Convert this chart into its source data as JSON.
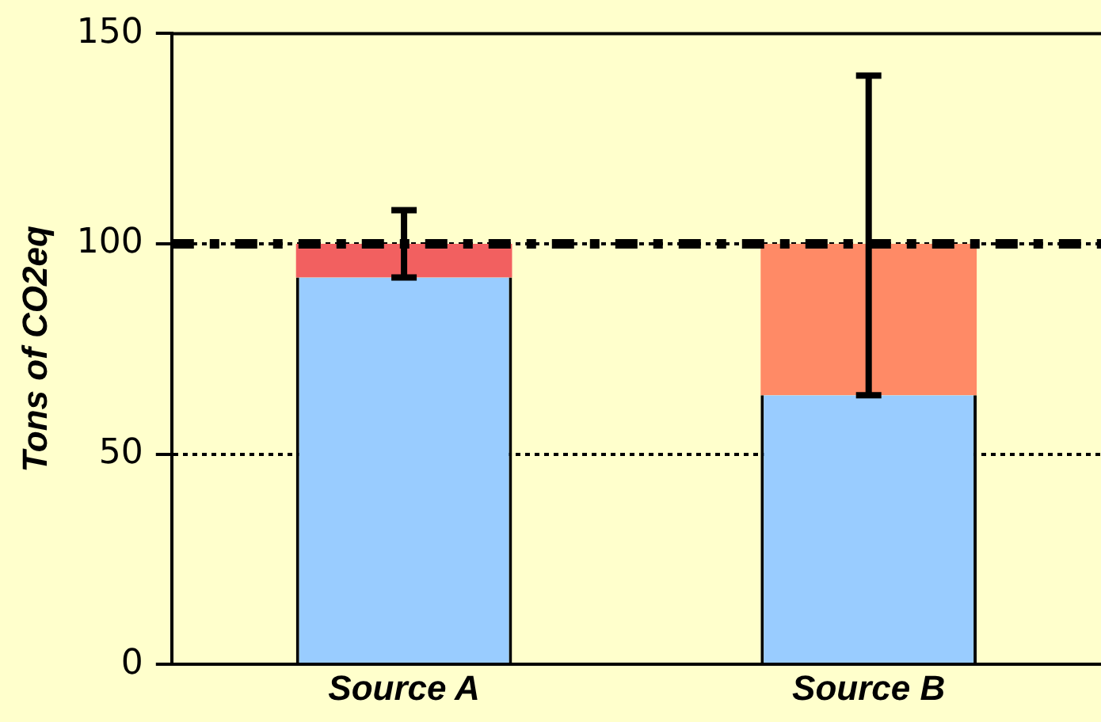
{
  "chart_data": {
    "type": "bar",
    "ylabel": "Tons of CO2eq",
    "categories": [
      "Source A",
      "Source B"
    ],
    "stacked": true,
    "series": [
      {
        "color": "#99ccff",
        "values": [
          92,
          64
        ]
      },
      {
        "colors": [
          "#f26060",
          "#ff8a66"
        ],
        "values": [
          8,
          36
        ],
        "errors": [
          [
            92,
            108
          ],
          [
            64,
            140
          ]
        ]
      }
    ],
    "ylim": [
      0,
      150
    ],
    "yticks": [
      0,
      50,
      100,
      150
    ],
    "grid": "y",
    "legend": false,
    "ref_lines": [
      {
        "axis": "y",
        "value": 100,
        "color": "#000000",
        "line_style": "dashed"
      }
    ]
  }
}
